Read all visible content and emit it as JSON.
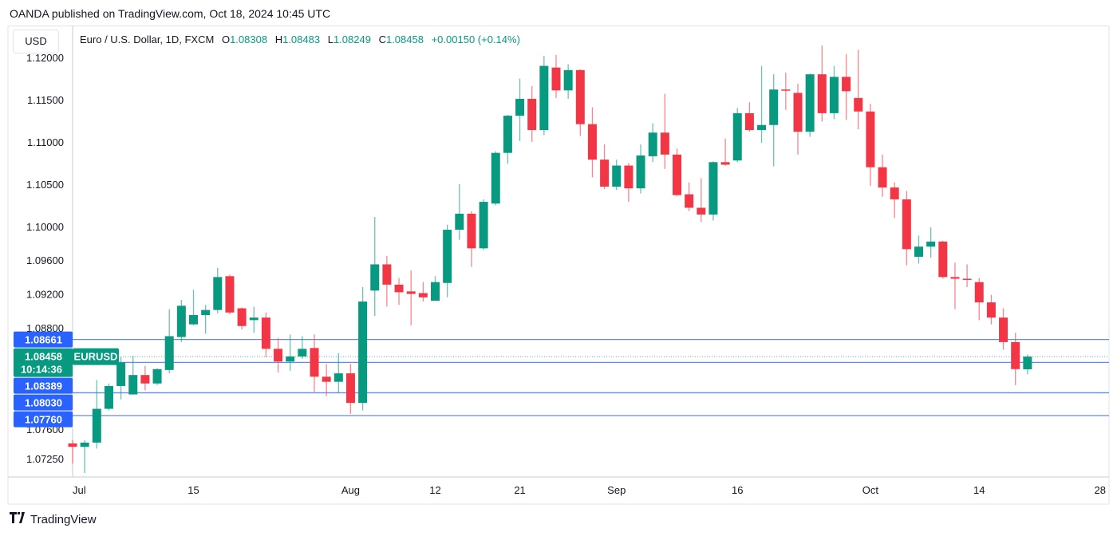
{
  "header": {
    "published": "OANDA published on TradingView.com, Oct 18, 2024 10:45 UTC",
    "currency_button": "USD",
    "symbol": "Euro / U.S. Dollar, 1D, FXCM",
    "o_label": "O",
    "o_value": "1.08308",
    "h_label": "H",
    "h_value": "1.08483",
    "l_label": "L",
    "l_value": "1.08249",
    "c_label": "C",
    "c_value": "1.08458",
    "change": "+0.00150 (+0.14%)"
  },
  "footer": {
    "brand": "TradingView",
    "logo": "TV"
  },
  "colors": {
    "up": "#089981",
    "down": "#F23645",
    "line": "#2962FF",
    "grid": "#e0e3eb"
  },
  "chart_data": {
    "type": "candlestick",
    "title": "Euro / U.S. Dollar, 1D, FXCM",
    "ylim": [
      1.0705,
      1.1235
    ],
    "y_ticks": [
      "1.12000",
      "1.11500",
      "1.11000",
      "1.10500",
      "1.10000",
      "1.09600",
      "1.09200",
      "1.08800",
      "1.07600",
      "1.07250"
    ],
    "x_ticks": [
      {
        "label": "Jul",
        "index": 0
      },
      {
        "label": "15",
        "index": 10
      },
      {
        "label": "Aug",
        "index": 23
      },
      {
        "label": "12",
        "index": 30
      },
      {
        "label": "21",
        "index": 37
      },
      {
        "label": "Sep",
        "index": 45
      },
      {
        "label": "16",
        "index": 55
      },
      {
        "label": "Oct",
        "index": 66
      },
      {
        "label": "14",
        "index": 75
      },
      {
        "label": "28",
        "index": 85
      }
    ],
    "price_lines": [
      "1.08661",
      "1.08389",
      "1.08030",
      "1.07760"
    ],
    "current": {
      "symbol": "EURUSD",
      "price": "1.08458",
      "countdown": "10:14:36"
    },
    "ohlc_columns": [
      "open",
      "high",
      "low",
      "close"
    ],
    "candles": [
      [
        1.0743,
        1.0747,
        1.0719,
        1.0739
      ],
      [
        1.0739,
        1.0747,
        1.0708,
        1.0744
      ],
      [
        1.0744,
        1.0818,
        1.0737,
        1.0784
      ],
      [
        1.0784,
        1.0814,
        1.0782,
        1.0811
      ],
      [
        1.0811,
        1.0845,
        1.0795,
        1.0839
      ],
      [
        1.0801,
        1.0847,
        1.0801,
        1.0824
      ],
      [
        1.0824,
        1.0835,
        1.0806,
        1.0814
      ],
      [
        1.0814,
        1.0832,
        1.0812,
        1.0831
      ],
      [
        1.083,
        1.0902,
        1.0826,
        1.087
      ],
      [
        1.0869,
        1.0913,
        1.0863,
        1.0906
      ],
      [
        1.0884,
        1.0925,
        1.0883,
        1.0895
      ],
      [
        1.0895,
        1.0907,
        1.0873,
        1.0901
      ],
      [
        1.0901,
        1.0951,
        1.0897,
        1.094
      ],
      [
        1.0941,
        1.0943,
        1.0896,
        1.0898
      ],
      [
        1.0903,
        1.0904,
        1.0878,
        1.0882
      ],
      [
        1.0889,
        1.0905,
        1.0874,
        1.0892
      ],
      [
        1.0892,
        1.0898,
        1.0845,
        1.0855
      ],
      [
        1.0855,
        1.0868,
        1.0827,
        1.084
      ],
      [
        1.084,
        1.0872,
        1.0829,
        1.0846
      ],
      [
        1.0846,
        1.087,
        1.0843,
        1.0855
      ],
      [
        1.0856,
        1.0872,
        1.0804,
        1.0822
      ],
      [
        1.0822,
        1.0837,
        1.0799,
        1.0816
      ],
      [
        1.0816,
        1.085,
        1.0803,
        1.0826
      ],
      [
        1.0826,
        1.0837,
        1.0778,
        1.0791
      ],
      [
        1.0791,
        1.0928,
        1.0782,
        1.0911
      ],
      [
        1.0924,
        1.1011,
        1.0894,
        1.0955
      ],
      [
        1.0955,
        1.0965,
        1.0905,
        1.0931
      ],
      [
        1.0931,
        1.0939,
        1.0907,
        1.0922
      ],
      [
        1.0923,
        1.0948,
        1.0883,
        1.092
      ],
      [
        1.0921,
        1.0934,
        1.0911,
        1.0916
      ],
      [
        1.0912,
        1.0941,
        1.0912,
        1.0934
      ],
      [
        1.0933,
        1.1002,
        1.0916,
        1.0996
      ],
      [
        1.0996,
        1.105,
        1.0984,
        1.1015
      ],
      [
        1.1015,
        1.1018,
        1.0952,
        1.0974
      ],
      [
        1.0974,
        1.1032,
        1.0972,
        1.1029
      ],
      [
        1.1027,
        1.1089,
        1.1025,
        1.1087
      ],
      [
        1.1087,
        1.1132,
        1.1074,
        1.1131
      ],
      [
        1.1131,
        1.1175,
        1.1101,
        1.1151
      ],
      [
        1.1151,
        1.1166,
        1.11,
        1.1114
      ],
      [
        1.1114,
        1.1202,
        1.1108,
        1.119
      ],
      [
        1.1188,
        1.1203,
        1.1152,
        1.1161
      ],
      [
        1.1161,
        1.1192,
        1.1151,
        1.1185
      ],
      [
        1.1185,
        1.1186,
        1.1107,
        1.1121
      ],
      [
        1.1121,
        1.1141,
        1.1058,
        1.1079
      ],
      [
        1.1079,
        1.1097,
        1.1044,
        1.1047
      ],
      [
        1.1047,
        1.1079,
        1.1043,
        1.1072
      ],
      [
        1.1072,
        1.1075,
        1.1029,
        1.1045
      ],
      [
        1.1045,
        1.1097,
        1.1039,
        1.1084
      ],
      [
        1.1083,
        1.1122,
        1.1076,
        1.1111
      ],
      [
        1.1111,
        1.1157,
        1.1068,
        1.1085
      ],
      [
        1.1085,
        1.1092,
        1.1036,
        1.1037
      ],
      [
        1.1038,
        1.1052,
        1.1018,
        1.1022
      ],
      [
        1.1022,
        1.1057,
        1.1005,
        1.1014
      ],
      [
        1.1014,
        1.1077,
        1.1007,
        1.1076
      ],
      [
        1.1076,
        1.1104,
        1.1072,
        1.1073
      ],
      [
        1.1078,
        1.114,
        1.1076,
        1.1134
      ],
      [
        1.1134,
        1.1147,
        1.1112,
        1.1114
      ],
      [
        1.1114,
        1.119,
        1.1099,
        1.112
      ],
      [
        1.112,
        1.118,
        1.1071,
        1.1162
      ],
      [
        1.1162,
        1.1182,
        1.1138,
        1.1161
      ],
      [
        1.1158,
        1.1169,
        1.1085,
        1.1112
      ],
      [
        1.1112,
        1.1181,
        1.1106,
        1.118
      ],
      [
        1.118,
        1.1214,
        1.1124,
        1.1134
      ],
      [
        1.1134,
        1.119,
        1.1127,
        1.1177
      ],
      [
        1.1177,
        1.1204,
        1.1126,
        1.116
      ],
      [
        1.1152,
        1.1209,
        1.1115,
        1.1136
      ],
      [
        1.1136,
        1.1145,
        1.1048,
        1.107
      ],
      [
        1.107,
        1.1085,
        1.1035,
        1.1046
      ],
      [
        1.1046,
        1.1052,
        1.101,
        1.1032
      ],
      [
        1.1032,
        1.1042,
        1.0954,
        1.0973
      ],
      [
        1.0964,
        1.0989,
        1.0956,
        1.0976
      ],
      [
        1.0976,
        1.0999,
        1.0963,
        1.0982
      ],
      [
        1.0982,
        1.0983,
        1.0938,
        1.094
      ],
      [
        1.094,
        1.0957,
        1.0902,
        1.0938
      ],
      [
        1.0938,
        1.0955,
        1.0928,
        1.0937
      ],
      [
        1.0934,
        1.0939,
        1.0889,
        1.091
      ],
      [
        1.091,
        1.0919,
        1.0884,
        1.0892
      ],
      [
        1.0892,
        1.0903,
        1.0854,
        1.0863
      ],
      [
        1.0863,
        1.0874,
        1.0812,
        1.0831
      ],
      [
        1.08308,
        1.08483,
        1.08249,
        1.08458
      ]
    ]
  }
}
